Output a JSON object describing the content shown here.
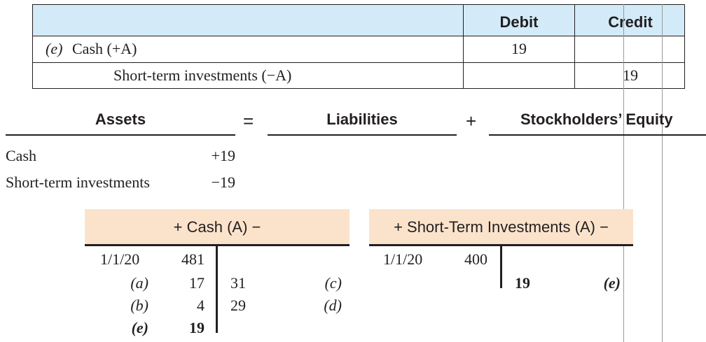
{
  "journal": {
    "headers": {
      "debit": "Debit",
      "credit": "Credit"
    },
    "rows": [
      {
        "ref": "(e)",
        "account": "Cash (+A)",
        "debit": "19",
        "credit": ""
      },
      {
        "ref": "",
        "account": "Short-term investments (−A)",
        "debit": "",
        "credit": "19"
      }
    ]
  },
  "equation": {
    "assets": "Assets",
    "equals": "=",
    "liabilities": "Liabilities",
    "plus": "+",
    "equity": "Stockholders’ Equity",
    "entries": [
      {
        "account": "Cash",
        "amount": "+19"
      },
      {
        "account": "Short-term investments",
        "amount": "−19"
      }
    ]
  },
  "t_accounts": [
    {
      "title": "+ Cash (A) −",
      "debits": [
        {
          "label": "1/1/20",
          "amount": "481"
        },
        {
          "label": "(a)",
          "amount": "17"
        },
        {
          "label": "(b)",
          "amount": "4"
        },
        {
          "label": "(e)",
          "amount": "19"
        }
      ],
      "credits": [
        {
          "amount": "31",
          "label": "(c)"
        },
        {
          "amount": "29",
          "label": "(d)"
        }
      ]
    },
    {
      "title": "+ Short-Term Investments (A) −",
      "debits": [
        {
          "label": "1/1/20",
          "amount": "400"
        }
      ],
      "credits": [
        {
          "amount": "19",
          "label": "(e)"
        }
      ]
    }
  ],
  "colors": {
    "header_blue": "#d3ebf8",
    "header_peach": "#fbe3cb",
    "ink": "#231f20"
  }
}
